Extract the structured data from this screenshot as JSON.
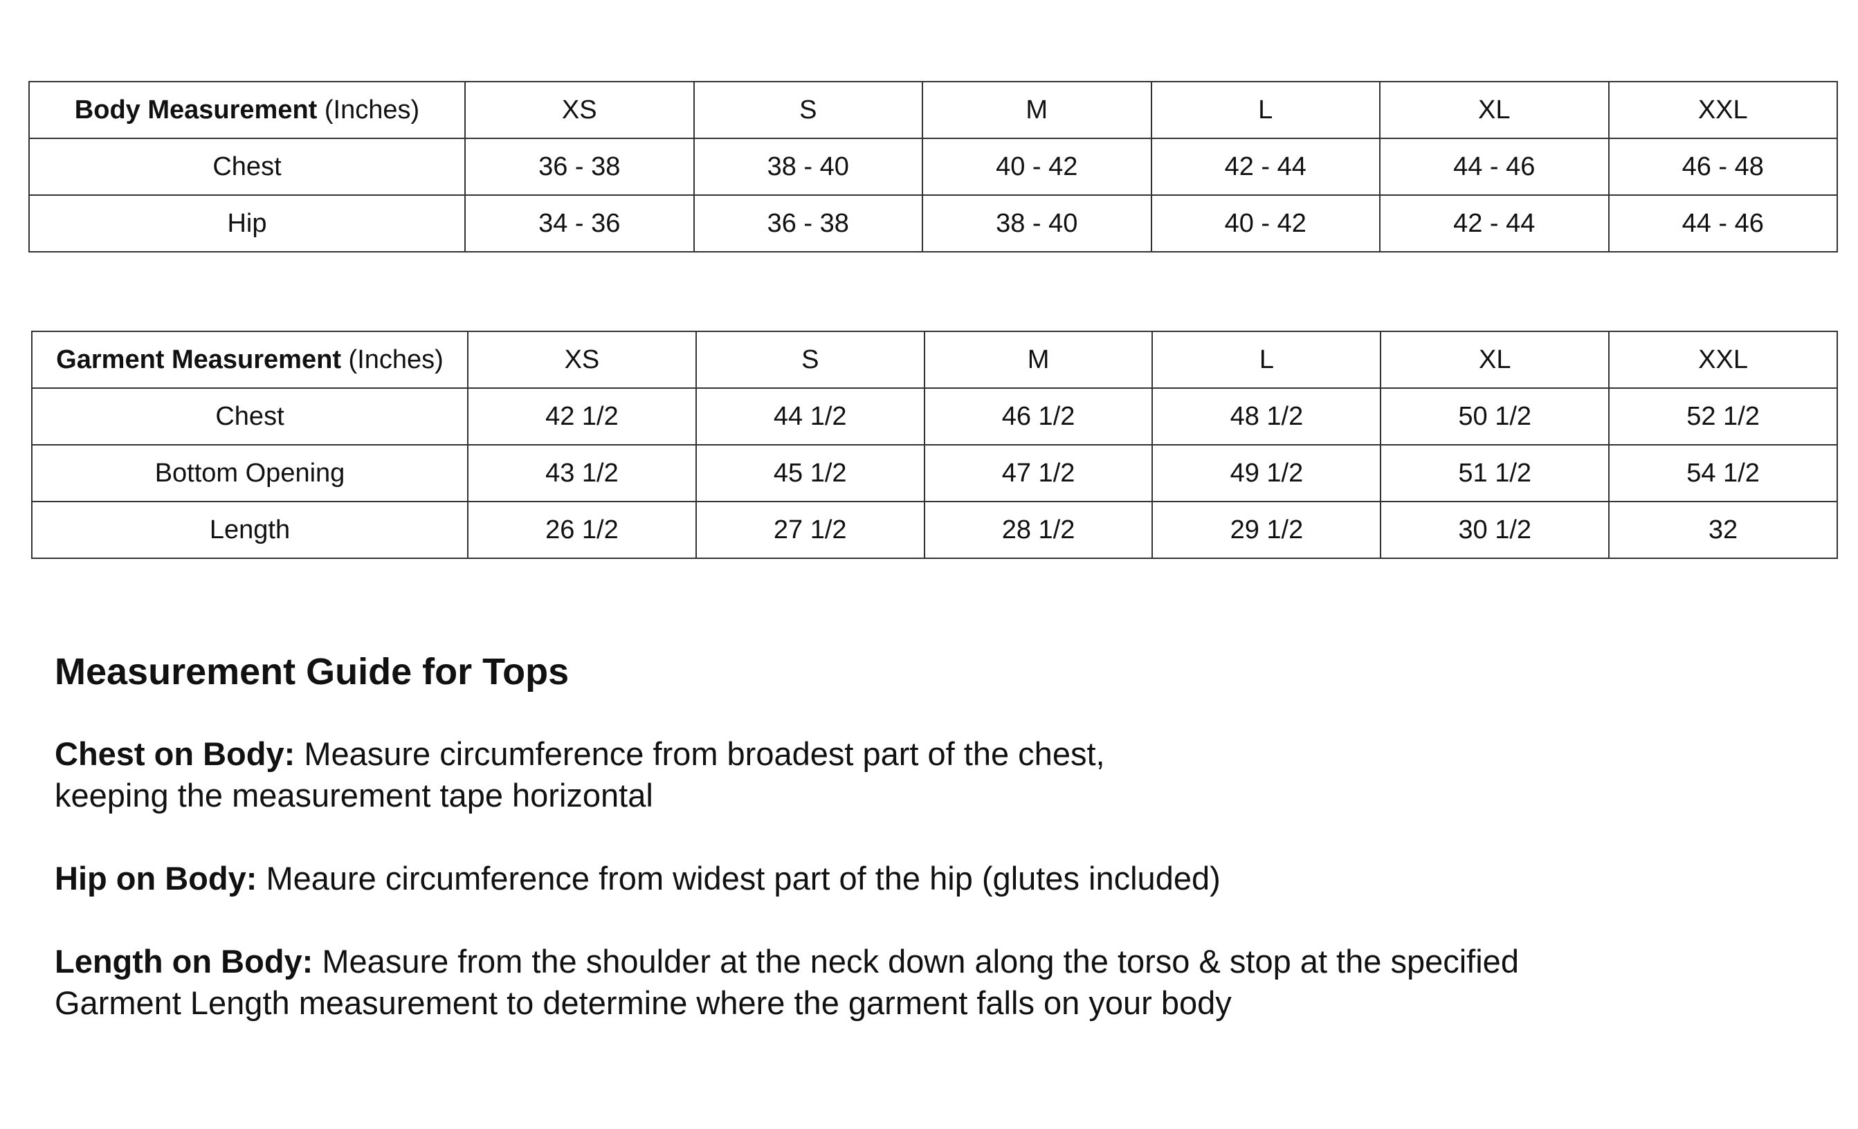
{
  "body_table": {
    "header_bold": "Body Measurement",
    "header_unit": "(Inches)",
    "sizes": [
      "XS",
      "S",
      "M",
      "L",
      "XL",
      "XXL"
    ],
    "rows": [
      {
        "label": "Chest",
        "values": [
          "36 - 38",
          "38 - 40",
          "40 - 42",
          "42 - 44",
          "44 - 46",
          "46 - 48"
        ]
      },
      {
        "label": "Hip",
        "values": [
          "34 - 36",
          "36 - 38",
          "38 - 40",
          "40 - 42",
          "42 - 44",
          "44 - 46"
        ]
      }
    ]
  },
  "garment_table": {
    "header_bold": "Garment Measurement",
    "header_unit": "(Inches)",
    "sizes": [
      "XS",
      "S",
      "M",
      "L",
      "XL",
      "XXL"
    ],
    "rows": [
      {
        "label": "Chest",
        "values": [
          "42 1/2",
          "44 1/2",
          "46 1/2",
          "48 1/2",
          "50 1/2",
          "52 1/2"
        ]
      },
      {
        "label": "Bottom Opening",
        "values": [
          "43 1/2",
          "45 1/2",
          "47 1/2",
          "49 1/2",
          "51 1/2",
          "54 1/2"
        ]
      },
      {
        "label": "Length",
        "values": [
          "26 1/2",
          "27 1/2",
          "28 1/2",
          "29 1/2",
          "30 1/2",
          "32"
        ]
      }
    ]
  },
  "guide": {
    "title": "Measurement Guide for Tops",
    "items": [
      {
        "term": "Chest on Body:",
        "line1": " Measure circumference from broadest part of the chest,",
        "line2": "keeping the measurement tape horizontal"
      },
      {
        "term": "Hip on Body:",
        "line1": " Meaure circumference from widest part of the hip (glutes included)",
        "line2": ""
      },
      {
        "term": "Length on Body:",
        "line1": " Measure from the shoulder at the neck down along the torso & stop at the specified",
        "line2": "Garment Length measurement to determine where the garment falls on your body"
      }
    ]
  }
}
